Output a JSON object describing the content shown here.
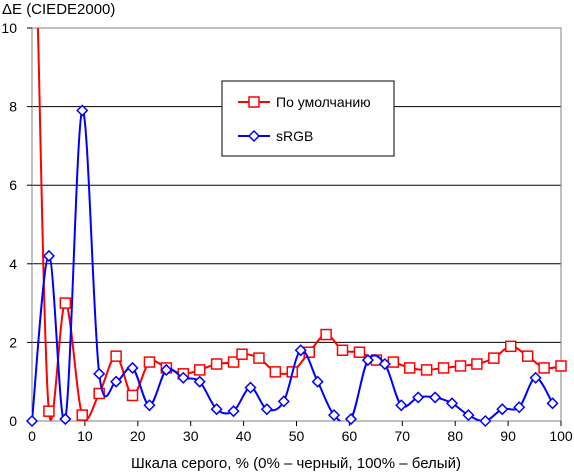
{
  "chart_data": {
    "type": "line",
    "ylabel": "ΔE (CIEDE2000)",
    "xlabel": "Шкала серого, % (0% – черный, 100% – белый)",
    "xlim": [
      0,
      100
    ],
    "ylim": [
      0,
      10
    ],
    "x_ticks": [
      0,
      10,
      20,
      30,
      40,
      50,
      60,
      70,
      80,
      90,
      100
    ],
    "y_ticks": [
      0,
      2,
      4,
      6,
      8,
      10
    ],
    "grid": "horizontal",
    "legend_position": "center-top",
    "series": [
      {
        "name": "По умолчанию",
        "color": "#ff0000",
        "marker": "square",
        "points": [
          [
            1.1,
            10.1
          ],
          [
            3.2,
            0.25
          ],
          [
            6.3,
            3.0
          ],
          [
            9.5,
            0.15
          ],
          [
            12.7,
            0.7
          ],
          [
            15.9,
            1.65
          ],
          [
            19.0,
            0.65
          ],
          [
            22.2,
            1.5
          ],
          [
            25.4,
            1.35
          ],
          [
            28.6,
            1.2
          ],
          [
            31.7,
            1.3
          ],
          [
            34.9,
            1.45
          ],
          [
            38.1,
            1.5
          ],
          [
            39.7,
            1.7
          ],
          [
            42.9,
            1.6
          ],
          [
            46.0,
            1.25
          ],
          [
            49.2,
            1.25
          ],
          [
            52.4,
            1.75
          ],
          [
            55.6,
            2.2
          ],
          [
            58.7,
            1.8
          ],
          [
            61.9,
            1.75
          ],
          [
            65.1,
            1.55
          ],
          [
            68.3,
            1.5
          ],
          [
            71.4,
            1.35
          ],
          [
            74.6,
            1.3
          ],
          [
            77.8,
            1.35
          ],
          [
            81.0,
            1.4
          ],
          [
            84.1,
            1.45
          ],
          [
            87.3,
            1.6
          ],
          [
            90.5,
            1.9
          ],
          [
            93.7,
            1.65
          ],
          [
            96.8,
            1.35
          ],
          [
            100.0,
            1.4
          ]
        ]
      },
      {
        "name": "sRGB",
        "color": "#0000ff",
        "marker": "diamond",
        "points": [
          [
            0.0,
            0.0
          ],
          [
            3.2,
            4.2
          ],
          [
            6.3,
            0.05
          ],
          [
            9.5,
            7.9
          ],
          [
            12.7,
            1.2
          ],
          [
            15.9,
            1.0
          ],
          [
            19.0,
            1.35
          ],
          [
            22.2,
            0.4
          ],
          [
            25.4,
            1.3
          ],
          [
            28.6,
            1.1
          ],
          [
            31.7,
            1.0
          ],
          [
            34.9,
            0.3
          ],
          [
            38.1,
            0.25
          ],
          [
            41.3,
            0.85
          ],
          [
            44.4,
            0.3
          ],
          [
            47.6,
            0.5
          ],
          [
            50.8,
            1.8
          ],
          [
            54.0,
            1.0
          ],
          [
            57.1,
            0.15
          ],
          [
            60.3,
            0.05
          ],
          [
            63.5,
            1.55
          ],
          [
            66.7,
            1.45
          ],
          [
            69.8,
            0.4
          ],
          [
            73.0,
            0.6
          ],
          [
            76.2,
            0.6
          ],
          [
            79.4,
            0.45
          ],
          [
            82.5,
            0.15
          ],
          [
            85.7,
            0.0
          ],
          [
            88.9,
            0.3
          ],
          [
            92.1,
            0.35
          ],
          [
            95.2,
            1.1
          ],
          [
            98.4,
            0.45
          ]
        ]
      }
    ]
  }
}
